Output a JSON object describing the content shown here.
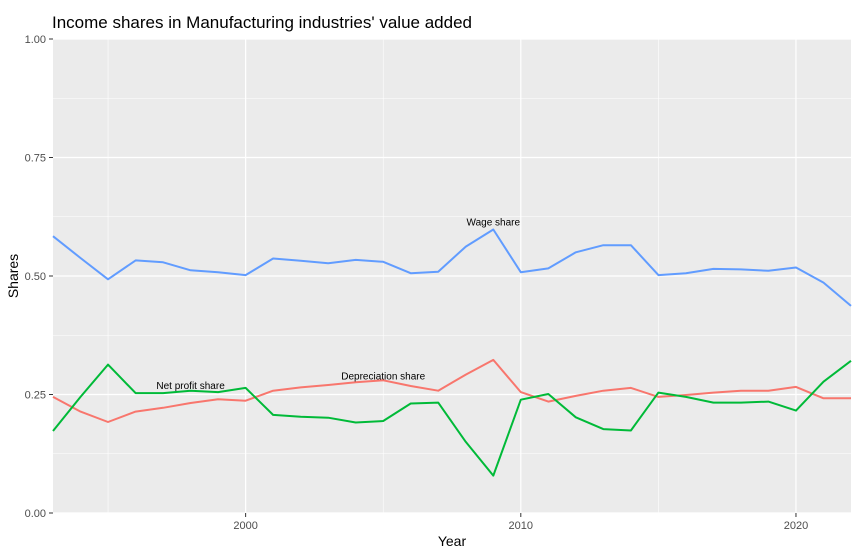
{
  "chart_data": {
    "type": "line",
    "title": "Income shares in Manufacturing industries' value added",
    "xlabel": "Year",
    "ylabel": "Shares",
    "xlim": [
      1993,
      2022
    ],
    "ylim": [
      0,
      1
    ],
    "x_ticks": [
      2000,
      2010,
      2020
    ],
    "y_ticks": [
      "0.00",
      "0.25",
      "0.50",
      "0.75",
      "1.00"
    ],
    "grid": true,
    "legend": "none",
    "x": [
      1993,
      1994,
      1995,
      1996,
      1997,
      1998,
      1999,
      2000,
      2001,
      2002,
      2003,
      2004,
      2005,
      2006,
      2007,
      2008,
      2009,
      2010,
      2011,
      2012,
      2013,
      2014,
      2015,
      2016,
      2017,
      2018,
      2019,
      2020,
      2021,
      2022
    ],
    "series": [
      {
        "color": "#619CFF",
        "values": [
          0.584,
          0.538,
          0.493,
          0.533,
          0.529,
          0.512,
          0.508,
          0.502,
          0.537,
          0.532,
          0.527,
          0.534,
          0.53,
          0.506,
          0.509,
          0.562,
          0.598,
          0.508,
          0.516,
          0.55,
          0.565,
          0.565,
          0.502,
          0.506,
          0.515,
          0.514,
          0.511,
          0.518,
          0.486,
          0.437
        ]
      },
      {
        "color": "#F8766D",
        "values": [
          0.245,
          0.214,
          0.192,
          0.214,
          0.222,
          0.232,
          0.24,
          0.237,
          0.258,
          0.265,
          0.27,
          0.276,
          0.28,
          0.268,
          0.258,
          0.292,
          0.323,
          0.255,
          0.235,
          0.247,
          0.258,
          0.264,
          0.245,
          0.249,
          0.254,
          0.258,
          0.258,
          0.266,
          0.242,
          0.242
        ]
      },
      {
        "color": "#00BA38",
        "values": [
          0.173,
          0.245,
          0.313,
          0.253,
          0.253,
          0.258,
          0.255,
          0.264,
          0.207,
          0.203,
          0.201,
          0.191,
          0.194,
          0.231,
          0.233,
          0.15,
          0.079,
          0.239,
          0.251,
          0.202,
          0.177,
          0.174,
          0.254,
          0.245,
          0.233,
          0.233,
          0.235,
          0.216,
          0.277,
          0.321
        ]
      }
    ],
    "annotations": [
      {
        "text": "Wage share",
        "x": 2009,
        "y": 0.615
      },
      {
        "text": "Depreciation share",
        "x": 2005,
        "y": 0.29
      },
      {
        "text": "Net profit share",
        "x": 1998,
        "y": 0.27
      }
    ]
  }
}
